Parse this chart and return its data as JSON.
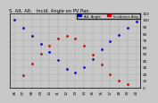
{
  "title": "S. Alt. Alt.   Incid. Angle on PV Pan.",
  "legend_blue_label": "Alt. Angle",
  "legend_red_label": "Incidence Ang.",
  "bg_color": "#c8c8c8",
  "plot_bg": "#c8c8c8",
  "ylim": [
    0,
    110
  ],
  "yticks": [
    0,
    10,
    20,
    30,
    40,
    50,
    60,
    70,
    80,
    90,
    100,
    110
  ],
  "ytick_labels": [
    "0",
    "10",
    "20",
    "30",
    "40",
    "50",
    "60",
    "70",
    "80",
    "90",
    "100",
    "110"
  ],
  "xtick_labels": [
    "06",
    "07",
    "08",
    "09",
    "10",
    "11",
    "12",
    "13",
    "14",
    "15",
    "16",
    "17",
    "18",
    "19",
    "20"
  ],
  "blue_x": [
    0,
    1,
    2,
    3,
    4,
    5,
    6,
    7,
    8,
    9,
    10,
    11,
    12,
    13,
    14
  ],
  "blue_y": [
    100,
    88,
    76,
    64,
    52,
    40,
    28,
    22,
    30,
    42,
    56,
    68,
    78,
    88,
    98
  ],
  "red_x": [
    1,
    2,
    3,
    4,
    5,
    6,
    7,
    8,
    9,
    10,
    11,
    12,
    13
  ],
  "red_y": [
    18,
    35,
    50,
    62,
    72,
    76,
    72,
    62,
    48,
    34,
    20,
    10,
    5
  ],
  "blue_color": "#0000cc",
  "red_color": "#cc0000",
  "grid_color": "#888888",
  "tick_fontsize": 3.0,
  "title_fontsize": 3.8,
  "legend_fontsize": 2.8,
  "marker_size": 1.0
}
